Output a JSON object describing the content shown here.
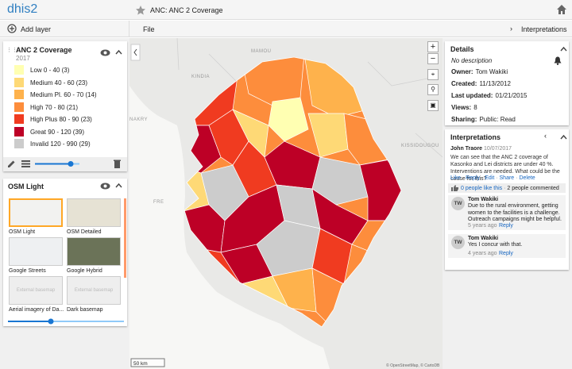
{
  "header": {
    "logo": "dhis2",
    "title": "ANC: ANC 2 Coverage"
  },
  "toolbar": {
    "add_layer": "Add layer",
    "file": "File",
    "interpretations": "Interpretations"
  },
  "layer": {
    "title": "ANC 2 Coverage",
    "period": "2017",
    "legend": [
      {
        "label": "Low 0 - 40 (3)",
        "color": "#ffffb2"
      },
      {
        "label": "Medium 40 - 60 (23)",
        "color": "#fed976"
      },
      {
        "label": "Medium Pl. 60 - 70 (14)",
        "color": "#feb24c"
      },
      {
        "label": "High 70 - 80 (21)",
        "color": "#fd8d3c"
      },
      {
        "label": "High Plus 80 - 90 (23)",
        "color": "#f03b20"
      },
      {
        "label": "Great 90 - 120 (39)",
        "color": "#bd0026"
      },
      {
        "label": "Invalid 120 - 990 (29)",
        "color": "#cccccc"
      }
    ]
  },
  "basemap": {
    "title": "OSM Light",
    "options": [
      {
        "name": "OSM Light"
      },
      {
        "name": "OSM Detailed"
      },
      {
        "name": "Google Streets"
      },
      {
        "name": "Google Hybrid"
      },
      {
        "name": "Aerial imagery of Da...",
        "thumbnail_text": "External basemap"
      },
      {
        "name": "Dark basemap",
        "thumbnail_text": "External basemap"
      }
    ]
  },
  "map": {
    "place_labels": [
      "MAMOU",
      "KINDIA",
      "NAKRY",
      "FRE",
      "KISSIDOUGOU"
    ],
    "scale": "50 km",
    "attribution": "© OpenStreetMap, © CartoDB"
  },
  "details": {
    "title": "Details",
    "description": "No description",
    "fields": [
      {
        "label": "Owner:",
        "value": "Tom Wakiki"
      },
      {
        "label": "Created:",
        "value": "11/13/2012"
      },
      {
        "label": "Last updated:",
        "value": "01/21/2015"
      },
      {
        "label": "Views:",
        "value": "8"
      },
      {
        "label": "Sharing:",
        "value": "Public: Read"
      }
    ]
  },
  "interpretations": {
    "title": "Interpretations",
    "author": "John Traore",
    "date": "10/07/2017",
    "text": "We can see that the ANC 2 coverage of Kasonko and Lei districts are under 40 %. Interventions are needed. What could be the cause for this?",
    "actions": [
      "Like",
      "Reply",
      "Edit",
      "Share",
      "Delete"
    ],
    "likes": "0 people like this",
    "comment_count": "2 people commented",
    "comments": [
      {
        "initials": "TW",
        "author": "Tom Wakiki",
        "text": "Due to the rural environment, getting women to the facilities is a challenge. Outreach campaigns might be helpful.",
        "time": "5 years ago",
        "reply": "Reply"
      },
      {
        "initials": "TW",
        "author": "Tom Wakiki",
        "text": "Yes I concur with that.",
        "time": "4 years ago",
        "reply": "Reply"
      }
    ]
  }
}
